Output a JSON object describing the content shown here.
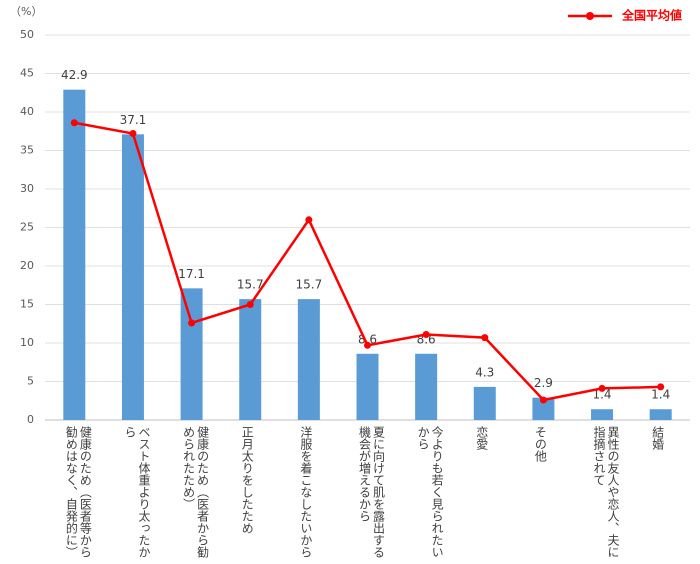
{
  "chart_data": {
    "type": "bar-line",
    "y_label": "（%）",
    "categories": [
      "健康のため（医者等から勧めはなく、自発的に）",
      "ベスト体重より太ったから",
      "健康のため（医者から勧められたため）",
      "正月太りをしたため",
      "洋服を着こなしたいから",
      "夏に向けて肌を露出する機会が増えるから",
      "今よりも若く見られたいから",
      "恋愛",
      "その他",
      "異性の友人や恋人、夫に指摘されて",
      "結婚"
    ],
    "series": [
      {
        "type": "bar",
        "color": "#5b9bd5",
        "values": [
          42.9,
          37.1,
          17.1,
          15.7,
          15.7,
          8.6,
          8.6,
          4.3,
          2.9,
          1.4,
          1.4
        ]
      },
      {
        "type": "line",
        "name": "全国平均値",
        "color": "#ff0000",
        "values": [
          38.6,
          37.2,
          12.6,
          15.0,
          26.0,
          9.7,
          11.1,
          10.7,
          2.6,
          4.1,
          4.3
        ]
      }
    ],
    "ylim": [
      0,
      50
    ],
    "yticks": [
      0,
      5,
      10,
      15,
      20,
      25,
      30,
      35,
      40,
      45,
      50
    ],
    "grid": true,
    "legend": "top-right"
  }
}
